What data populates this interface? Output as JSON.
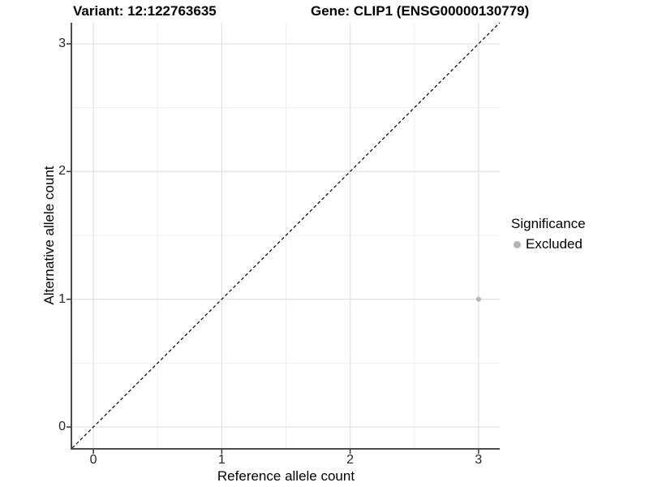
{
  "chart_data": {
    "type": "scatter",
    "title_left": "Variant: 12:122763635",
    "title_right": "Gene: CLIP1 (ENSG00000130779)",
    "xlabel": "Reference allele count",
    "ylabel": "Alternative allele count",
    "xlim": [
      -0.165,
      3.165
    ],
    "ylim": [
      -0.165,
      3.165
    ],
    "x_ticks": [
      0,
      1,
      2,
      3
    ],
    "x_minor_ticks": [
      0.5,
      1.5,
      2.5
    ],
    "y_ticks": [
      0,
      1,
      2,
      3
    ],
    "y_minor_ticks": [
      0.5,
      1.5,
      2.5
    ],
    "grid": "major+minor",
    "reference_line": {
      "type": "identity",
      "slope": 1,
      "intercept": 0,
      "style": "dashed",
      "color": "#000000"
    },
    "series": [
      {
        "name": "Excluded",
        "color": "#b4b4b4",
        "point_radius": 3,
        "points": [
          [
            3,
            1
          ]
        ]
      }
    ],
    "legend": {
      "title": "Significance",
      "position": "right",
      "entries": [
        {
          "label": "Excluded",
          "color": "#b4b4b4",
          "marker": "circle"
        }
      ]
    },
    "colors": {
      "grid_major": "#e3e3e3",
      "grid_minor": "#f0f0f0",
      "axis_line": "#4d4d4d",
      "tick_mark": "#333333",
      "panel_background": "#ffffff"
    }
  }
}
